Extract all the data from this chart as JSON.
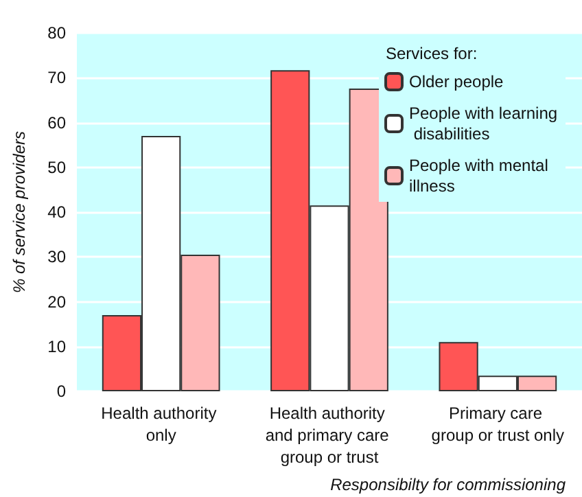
{
  "chart_data": {
    "type": "bar",
    "xlabel": "Responsibilty for commissioning",
    "ylabel": "% of service providers",
    "legend_title": "Services for:",
    "categories": [
      "Health authority only",
      "Health authority and primary care group or trust",
      "Primary care group or trust only"
    ],
    "series": [
      {
        "name": "Older people",
        "color": "#ff5555",
        "values": [
          17,
          71.7,
          11
        ]
      },
      {
        "name": "People with learning disabilities",
        "color": "#ffffff",
        "values": [
          57,
          41.5,
          3.5
        ]
      },
      {
        "name": "People with mental illness",
        "color": "#ffb8b8",
        "values": [
          30.5,
          67.6,
          3.5
        ]
      }
    ],
    "ylim": [
      0,
      80
    ],
    "yticks": [
      0,
      10,
      20,
      30,
      40,
      50,
      60,
      70,
      80
    ],
    "grid": "y",
    "legend": "top right"
  }
}
